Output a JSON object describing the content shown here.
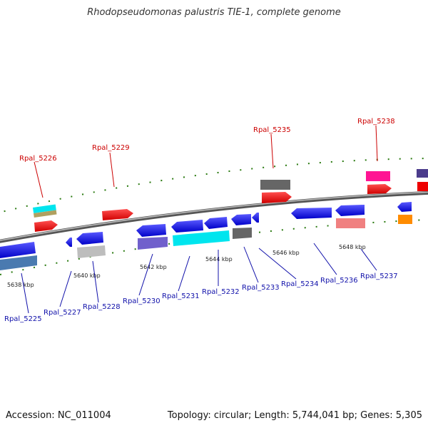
{
  "title": "Rhodopseudomonas palustris TIE-1, complete genome",
  "footer": {
    "accession": "Accession: NC_011004",
    "summary": "Topology: circular; Length: 5,744,041 bp; Genes: 5,305"
  },
  "ticks": [
    "5638 kbp",
    "5640 kbp",
    "5642 kbp",
    "5644 kbp",
    "5646 kbp",
    "5648 kbp"
  ],
  "top_labels": [
    "Rpal_5226",
    "Rpal_5229",
    "Rpal_5235",
    "Rpal_5238"
  ],
  "bottom_labels": [
    "Rpal_5225",
    "Rpal_5227",
    "Rpal_5228",
    "Rpal_5230",
    "Rpal_5231",
    "Rpal_5232",
    "Rpal_5233",
    "Rpal_5234",
    "Rpal_5236",
    "Rpal_5237"
  ],
  "colors": {
    "backbone": "#888888",
    "forward": "#ff0000",
    "reverse": "#0000ee",
    "label_forward": "#cc0000",
    "label_reverse": "#1111aa",
    "dots": "#2a7a10"
  }
}
